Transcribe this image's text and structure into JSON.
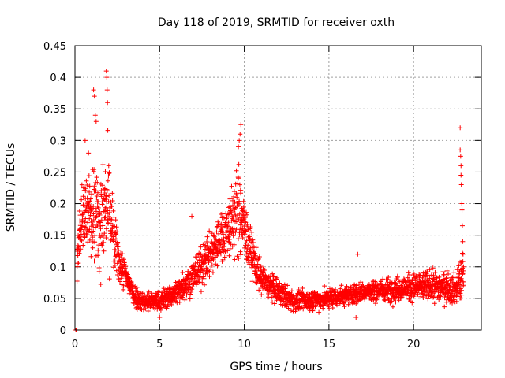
{
  "chart_data": {
    "type": "scatter",
    "title": "Day 118 of 2019, SRMTID for receiver oxth",
    "xlabel": "GPS time / hours",
    "ylabel": "SRMTID / TECUs",
    "xlim": [
      0,
      24
    ],
    "ylim": [
      0,
      0.45
    ],
    "x_ticks": [
      0,
      5,
      10,
      15,
      20
    ],
    "x_tick_labels": [
      "0",
      "5",
      "10",
      "15",
      "20"
    ],
    "y_ticks": [
      0,
      0.05,
      0.1,
      0.15,
      0.2,
      0.25,
      0.3,
      0.35,
      0.4,
      0.45
    ],
    "y_tick_labels": [
      "0",
      "0.05",
      "0.1",
      "0.15",
      "0.2",
      "0.25",
      "0.3",
      "0.35",
      "0.4",
      "0.45"
    ],
    "grid": true,
    "marker": "plus",
    "marker_color": "#ff0000",
    "series": [
      {
        "name": "SRMTID",
        "profile": [
          {
            "x": 0.0,
            "center": 0.0,
            "spread": 0.0
          },
          {
            "x": 0.05,
            "center": 0.0,
            "spread": 0.002
          },
          {
            "x": 0.15,
            "center": 0.13,
            "spread": 0.04
          },
          {
            "x": 0.5,
            "center": 0.18,
            "spread": 0.07
          },
          {
            "x": 1.0,
            "center": 0.2,
            "spread": 0.09
          },
          {
            "x": 1.5,
            "center": 0.17,
            "spread": 0.09
          },
          {
            "x": 2.0,
            "center": 0.2,
            "spread": 0.12
          },
          {
            "x": 2.3,
            "center": 0.14,
            "spread": 0.06
          },
          {
            "x": 2.7,
            "center": 0.1,
            "spread": 0.04
          },
          {
            "x": 3.0,
            "center": 0.085,
            "spread": 0.03
          },
          {
            "x": 3.5,
            "center": 0.055,
            "spread": 0.025
          },
          {
            "x": 4.0,
            "center": 0.045,
            "spread": 0.02
          },
          {
            "x": 5.0,
            "center": 0.045,
            "spread": 0.02
          },
          {
            "x": 6.0,
            "center": 0.06,
            "spread": 0.025
          },
          {
            "x": 7.0,
            "center": 0.085,
            "spread": 0.035
          },
          {
            "x": 8.0,
            "center": 0.12,
            "spread": 0.045
          },
          {
            "x": 9.0,
            "center": 0.16,
            "spread": 0.06
          },
          {
            "x": 9.7,
            "center": 0.19,
            "spread": 0.09
          },
          {
            "x": 10.2,
            "center": 0.14,
            "spread": 0.05
          },
          {
            "x": 11.0,
            "center": 0.08,
            "spread": 0.03
          },
          {
            "x": 12.0,
            "center": 0.06,
            "spread": 0.025
          },
          {
            "x": 13.0,
            "center": 0.045,
            "spread": 0.02
          },
          {
            "x": 15.0,
            "center": 0.05,
            "spread": 0.02
          },
          {
            "x": 17.0,
            "center": 0.06,
            "spread": 0.02
          },
          {
            "x": 19.0,
            "center": 0.065,
            "spread": 0.025
          },
          {
            "x": 21.0,
            "center": 0.07,
            "spread": 0.03
          },
          {
            "x": 22.5,
            "center": 0.065,
            "spread": 0.03
          },
          {
            "x": 22.8,
            "center": 0.08,
            "spread": 0.05
          }
        ],
        "points": [
          [
            0.05,
            0.0
          ],
          [
            0.08,
            0.0
          ],
          [
            1.1,
            0.38
          ],
          [
            1.15,
            0.37
          ],
          [
            1.2,
            0.34
          ],
          [
            1.25,
            0.33
          ],
          [
            1.85,
            0.41
          ],
          [
            1.88,
            0.4
          ],
          [
            1.9,
            0.38
          ],
          [
            1.92,
            0.36
          ],
          [
            0.6,
            0.3
          ],
          [
            0.8,
            0.28
          ],
          [
            9.8,
            0.325
          ],
          [
            9.75,
            0.31
          ],
          [
            9.7,
            0.3
          ],
          [
            9.65,
            0.29
          ],
          [
            6.9,
            0.18
          ],
          [
            5.0,
            0.02
          ],
          [
            16.7,
            0.12
          ],
          [
            16.6,
            0.02
          ],
          [
            22.75,
            0.32
          ],
          [
            22.75,
            0.285
          ],
          [
            22.78,
            0.275
          ],
          [
            22.8,
            0.26
          ],
          [
            22.8,
            0.245
          ],
          [
            22.82,
            0.23
          ],
          [
            22.85,
            0.2
          ],
          [
            22.86,
            0.19
          ],
          [
            22.88,
            0.165
          ],
          [
            22.9,
            0.14
          ],
          [
            22.92,
            0.12
          ],
          [
            22.95,
            0.1
          ]
        ]
      }
    ]
  }
}
